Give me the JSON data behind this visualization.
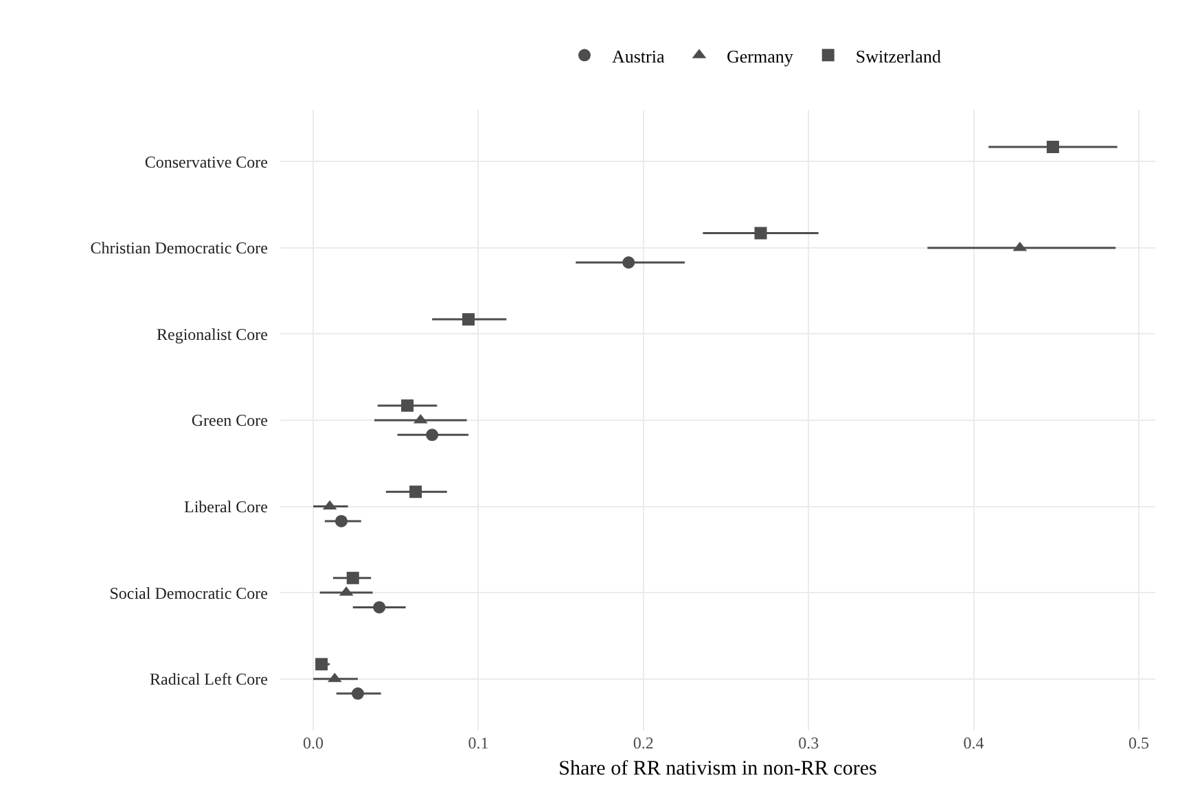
{
  "chart_data": {
    "type": "scatter",
    "orientation": "horizontal",
    "xlabel": "Share of RR nativism in non-RR cores",
    "categories": [
      "Conservative Core",
      "Christian Democratic Core",
      "Regionalist Core",
      "Green Core",
      "Liberal Core",
      "Social Democratic Core",
      "Radical Left Core"
    ],
    "series": [
      {
        "name": "Austria",
        "color": "#4d4d4d",
        "marker": "circle",
        "values": [
          null,
          0.191,
          null,
          0.072,
          0.017,
          0.04,
          0.027
        ],
        "errors": [
          null,
          [
            0.159,
            0.225
          ],
          null,
          [
            0.051,
            0.094
          ],
          [
            0.007,
            0.029
          ],
          [
            0.024,
            0.056
          ],
          [
            0.014,
            0.041
          ]
        ]
      },
      {
        "name": "Germany",
        "color": "#4d4d4d",
        "marker": "triangle",
        "values": [
          null,
          0.428,
          null,
          0.065,
          0.01,
          0.02,
          0.013
        ],
        "errors": [
          null,
          [
            0.372,
            0.486
          ],
          null,
          [
            0.037,
            0.093
          ],
          [
            0.0,
            0.021
          ],
          [
            0.004,
            0.036
          ],
          [
            0.0,
            0.027
          ]
        ]
      },
      {
        "name": "Switzerland",
        "color": "#4d4d4d",
        "marker": "square",
        "values": [
          0.448,
          0.271,
          0.094,
          0.057,
          0.062,
          0.024,
          0.005
        ],
        "errors": [
          [
            0.409,
            0.487
          ],
          [
            0.236,
            0.306
          ],
          [
            0.072,
            0.117
          ],
          [
            0.039,
            0.075
          ],
          [
            0.044,
            0.081
          ],
          [
            0.012,
            0.035
          ],
          [
            0.002,
            0.01
          ]
        ]
      }
    ],
    "xlim": [
      -0.02,
      0.51
    ],
    "xticks": [
      {
        "value": 0,
        "label": "0.0"
      },
      0.1,
      0.2,
      0.3,
      0.4,
      0.5
    ],
    "grid": true,
    "legend": "top"
  }
}
